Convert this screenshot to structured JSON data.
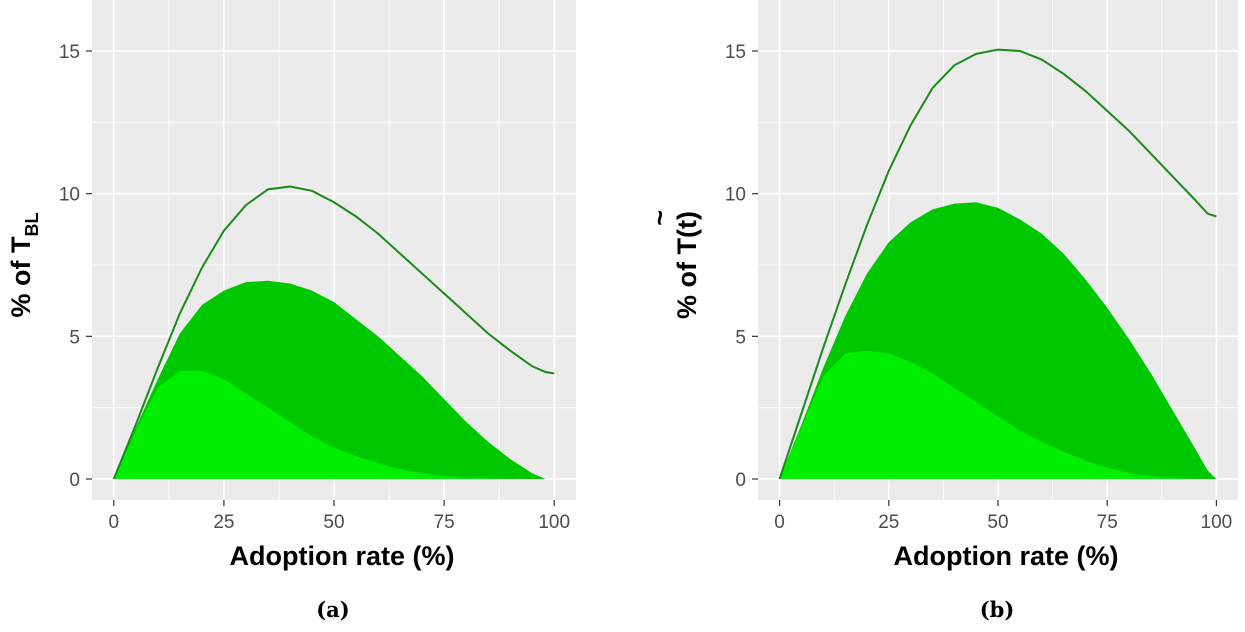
{
  "colors": {
    "panel_bg": "#ebebeb",
    "grid": "#ffffff",
    "line": "#1a8a1a",
    "area_dark": "#00c800",
    "area_light": "#00ee00"
  },
  "chart_data": [
    {
      "type": "area",
      "caption": "(a)",
      "xlabel": "Adoption rate (%)",
      "ylabel_main": "% of T",
      "ylabel_sub": "BL",
      "xlim": [
        0,
        100
      ],
      "ylim": [
        0,
        15
      ],
      "x_ticks": [
        0,
        25,
        50,
        75,
        100
      ],
      "y_ticks": [
        0,
        5,
        10,
        15
      ],
      "grid": true,
      "x": [
        0,
        5,
        10,
        15,
        20,
        25,
        30,
        35,
        40,
        45,
        50,
        55,
        60,
        65,
        70,
        75,
        80,
        85,
        90,
        95,
        98,
        100
      ],
      "series": [
        {
          "values": [
            0,
            1.7,
            3.2,
            3.8,
            3.8,
            3.5,
            3.0,
            2.5,
            2.0,
            1.5,
            1.1,
            0.8,
            0.55,
            0.35,
            0.2,
            0.1,
            0.05,
            0.02,
            0.01,
            0.0,
            0.0,
            0.0
          ]
        },
        {
          "values": [
            0,
            1.8,
            3.5,
            5.1,
            6.1,
            6.6,
            6.9,
            6.95,
            6.85,
            6.6,
            6.2,
            5.6,
            5.0,
            4.3,
            3.6,
            2.8,
            2.0,
            1.3,
            0.7,
            0.2,
            0.0,
            0.0
          ]
        },
        {
          "values": [
            0,
            1.9,
            3.9,
            5.8,
            7.4,
            8.7,
            9.6,
            10.15,
            10.25,
            10.1,
            9.7,
            9.2,
            8.6,
            7.9,
            7.2,
            6.5,
            5.8,
            5.1,
            4.5,
            3.95,
            3.75,
            3.7
          ]
        }
      ]
    },
    {
      "type": "area",
      "caption": "(b)",
      "xlabel": "Adoption rate (%)",
      "ylabel_main": "% of T(t)",
      "ylabel_sub": "",
      "xlim": [
        0,
        100
      ],
      "ylim": [
        0,
        15
      ],
      "x_ticks": [
        0,
        25,
        50,
        75,
        100
      ],
      "y_ticks": [
        0,
        5,
        10,
        15
      ],
      "grid": true,
      "x": [
        0,
        5,
        10,
        15,
        20,
        25,
        30,
        35,
        40,
        45,
        50,
        55,
        60,
        65,
        70,
        75,
        80,
        85,
        90,
        95,
        98,
        100
      ],
      "series": [
        {
          "values": [
            0,
            1.8,
            3.6,
            4.4,
            4.5,
            4.4,
            4.1,
            3.7,
            3.2,
            2.7,
            2.2,
            1.7,
            1.3,
            0.95,
            0.65,
            0.4,
            0.22,
            0.1,
            0.04,
            0.01,
            0.0,
            0.0
          ]
        },
        {
          "values": [
            0,
            1.9,
            3.9,
            5.7,
            7.2,
            8.3,
            9.0,
            9.45,
            9.65,
            9.7,
            9.5,
            9.1,
            8.6,
            7.9,
            7.0,
            6.0,
            4.9,
            3.7,
            2.4,
            1.1,
            0.3,
            0.0
          ]
        },
        {
          "values": [
            0,
            2.3,
            4.6,
            6.8,
            8.9,
            10.8,
            12.4,
            13.7,
            14.5,
            14.9,
            15.05,
            15.0,
            14.7,
            14.2,
            13.6,
            12.9,
            12.2,
            11.4,
            10.6,
            9.8,
            9.3,
            9.2
          ]
        }
      ]
    }
  ]
}
